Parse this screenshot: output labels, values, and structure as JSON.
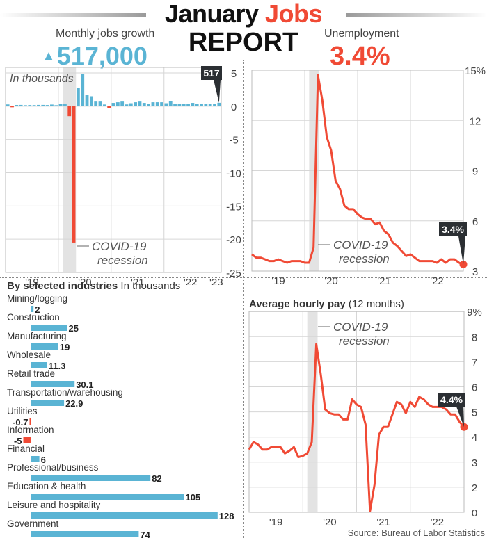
{
  "header": {
    "title_part1": "January ",
    "title_accent": "Jobs",
    "title_line2": "REPORT",
    "jobs_label": "Monthly jobs growth",
    "jobs_value": "517,000",
    "jobs_icon": "up-triangle-icon",
    "unemployment_label": "Unemployment",
    "unemployment_value": "3.4%"
  },
  "colors": {
    "blue": "#5ab4d4",
    "red": "#f04a35",
    "annotation": "#2b2f33",
    "recession": "#e3e3e3",
    "grid": "#d6d6d6"
  },
  "chart_data": [
    {
      "id": "jobs",
      "type": "bar",
      "unit_note": "In thousands",
      "x_start": "2019-01",
      "x_end": "2023-01",
      "frequency": "monthly",
      "xtick_labels": [
        "'19",
        "'20",
        "'21",
        "'22",
        "'23"
      ],
      "ylim": [
        -25,
        5
      ],
      "yticks": [
        5,
        0,
        -5,
        -10,
        -15,
        -20,
        -25
      ],
      "ytick_labels": [
        "5",
        "0",
        "-5",
        "-10",
        "-15",
        "-20",
        "-25"
      ],
      "grid": true,
      "values": [
        0.27,
        -0.05,
        0.19,
        0.2,
        0.1,
        0.18,
        0.17,
        0.2,
        0.2,
        0.18,
        0.25,
        0.15,
        0.3,
        0.3,
        -1.5,
        -20.5,
        2.8,
        4.8,
        1.7,
        1.5,
        0.7,
        0.7,
        0.26,
        -0.27,
        0.5,
        0.6,
        0.7,
        0.27,
        0.45,
        0.6,
        0.7,
        0.5,
        0.4,
        0.6,
        0.6,
        0.6,
        0.45,
        0.8,
        0.4,
        0.35,
        0.35,
        0.4,
        0.5,
        0.35,
        0.35,
        0.3,
        0.3,
        0.3,
        0.517
      ],
      "annotation": "517",
      "recession_label": [
        "COVID-19",
        "recession"
      ],
      "recession": [
        "2020-02",
        "2020-04"
      ]
    },
    {
      "id": "unemployment",
      "type": "line",
      "x_start": "2019-01",
      "x_end": "2023-01",
      "frequency": "monthly",
      "xtick_labels": [
        "'19",
        "'20",
        "'21",
        "'22"
      ],
      "ylim": [
        3,
        15
      ],
      "yticks": [
        15,
        12,
        9,
        6,
        3
      ],
      "ytick_labels": [
        "15%",
        "12",
        "9",
        "6",
        "3"
      ],
      "grid": true,
      "values": [
        4.0,
        3.8,
        3.8,
        3.7,
        3.6,
        3.6,
        3.7,
        3.6,
        3.5,
        3.6,
        3.6,
        3.6,
        3.5,
        3.5,
        4.4,
        14.7,
        13.2,
        11.0,
        10.2,
        8.4,
        7.9,
        6.9,
        6.7,
        6.7,
        6.4,
        6.2,
        6.1,
        6.1,
        5.8,
        5.9,
        5.4,
        5.2,
        4.7,
        4.5,
        4.2,
        3.9,
        4.0,
        3.8,
        3.6,
        3.6,
        3.6,
        3.6,
        3.5,
        3.7,
        3.5,
        3.7,
        3.7,
        3.5,
        3.4
      ],
      "annotation": "3.4%",
      "recession_label": [
        "COVID-19",
        "recession"
      ],
      "recession": [
        "2020-02",
        "2020-04"
      ]
    },
    {
      "id": "industries",
      "type": "bar",
      "title": "By selected industries",
      "subtitle": "In thousands",
      "categories": [
        "Mining/logging",
        "Construction",
        "Manufacturing",
        "Wholesale",
        "Retail trade",
        "Transportation/warehousing",
        "Utilities",
        "Information",
        "Financial",
        "Professional/business",
        "Education & health",
        "Leisure and hospitality",
        "Government"
      ],
      "values": [
        2,
        25,
        19,
        11.3,
        30.1,
        22.9,
        -0.7,
        -5,
        6,
        82,
        105,
        128,
        74
      ],
      "value_labels": [
        "2",
        "25",
        "19",
        "11.3",
        "30.1",
        "22.9",
        "-0.7",
        "-5",
        "6",
        "82",
        "105",
        "128",
        "74"
      ]
    },
    {
      "id": "hourly_pay",
      "type": "line",
      "title": "Average hourly pay",
      "subtitle": "(12 months)",
      "x_start": "2019-01",
      "x_end": "2023-01",
      "frequency": "monthly",
      "xtick_labels": [
        "'19",
        "'20",
        "'21",
        "'22"
      ],
      "ylim": [
        0,
        9
      ],
      "yticks": [
        9,
        8,
        7,
        6,
        5,
        4,
        3,
        2,
        0
      ],
      "ytick_labels": [
        "9%",
        "8",
        "7",
        "6",
        "5",
        "4",
        "3",
        "2",
        "0"
      ],
      "grid": true,
      "values": [
        3.5,
        3.8,
        3.7,
        3.5,
        3.5,
        3.6,
        3.6,
        3.6,
        3.35,
        3.45,
        3.6,
        3.2,
        3.25,
        3.35,
        3.8,
        7.7,
        6.5,
        5.1,
        4.95,
        4.9,
        4.9,
        4.7,
        4.7,
        5.5,
        5.3,
        5.2,
        4.5,
        0.1,
        2.1,
        4.1,
        4.4,
        4.4,
        4.9,
        5.4,
        5.3,
        4.95,
        5.4,
        5.2,
        5.6,
        5.5,
        5.3,
        5.2,
        5.2,
        5.2,
        5.1,
        4.9,
        4.9,
        4.6,
        4.4
      ],
      "annotation": "4.4%",
      "recession_label": [
        "COVID-19",
        "recession"
      ],
      "recession": [
        "2020-02",
        "2020-04"
      ]
    }
  ],
  "source": "Source: Bureau of Labor Statistics"
}
